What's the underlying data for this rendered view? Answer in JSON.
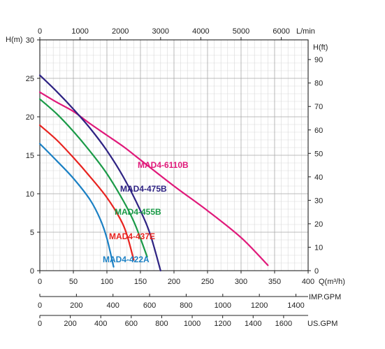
{
  "chart_data": {
    "type": "line",
    "axes": {
      "q_m3h": {
        "label": "Q(m³/h)",
        "min": 0,
        "max": 400,
        "ticks": [
          0,
          50,
          100,
          150,
          200,
          250,
          300,
          350,
          400
        ]
      },
      "l_min": {
        "label": "L/min",
        "min": 0,
        "max": 6666.7,
        "ticks": [
          0,
          1000,
          2000,
          3000,
          4000,
          5000,
          6000
        ]
      },
      "h_m": {
        "label": "H(m)",
        "min": 0,
        "max": 30,
        "ticks": [
          0,
          5,
          10,
          15,
          20,
          25,
          30
        ]
      },
      "h_ft": {
        "label": "H(ft)",
        "min": 0,
        "max": 98.4,
        "ticks": [
          0,
          10,
          20,
          30,
          40,
          50,
          60,
          70,
          80,
          90
        ]
      },
      "imp_gpm": {
        "label": "IMP.GPM",
        "min": 0,
        "max": 1466.7,
        "ticks": [
          0,
          200,
          400,
          600,
          800,
          1000,
          1200,
          1400
        ]
      },
      "us_gpm": {
        "label": "US.GPM",
        "min": 0,
        "max": 1761,
        "ticks": [
          0,
          200,
          400,
          600,
          800,
          1000,
          1200,
          1400,
          1600
        ]
      }
    },
    "grid": true,
    "series": [
      {
        "name": "MAD4-6110B",
        "color": "#e0197a",
        "points": [
          [
            0,
            23.2
          ],
          [
            25,
            21.9
          ],
          [
            50,
            20.7
          ],
          [
            75,
            19.1
          ],
          [
            100,
            17.6
          ],
          [
            125,
            16.1
          ],
          [
            150,
            14.4
          ],
          [
            200,
            11.0
          ],
          [
            250,
            7.8
          ],
          [
            300,
            4.3
          ],
          [
            340,
            0.7
          ]
        ]
      },
      {
        "name": "MAD4-475B",
        "color": "#2e2383",
        "points": [
          [
            0,
            25.4
          ],
          [
            25,
            23.3
          ],
          [
            50,
            21.0
          ],
          [
            75,
            18.5
          ],
          [
            100,
            15.6
          ],
          [
            125,
            12.1
          ],
          [
            150,
            7.8
          ],
          [
            165,
            4.6
          ],
          [
            180,
            0.0
          ]
        ]
      },
      {
        "name": "MAD4-455B",
        "color": "#1a9a47",
        "points": [
          [
            0,
            22.3
          ],
          [
            25,
            20.4
          ],
          [
            50,
            18.1
          ],
          [
            75,
            15.5
          ],
          [
            100,
            12.6
          ],
          [
            125,
            9.0
          ],
          [
            140,
            6.4
          ],
          [
            150,
            4.2
          ],
          [
            160,
            1.8
          ]
        ]
      },
      {
        "name": "MAD4-437E",
        "color": "#e8231f",
        "points": [
          [
            0,
            18.9
          ],
          [
            25,
            17.0
          ],
          [
            50,
            14.7
          ],
          [
            75,
            12.2
          ],
          [
            100,
            9.5
          ],
          [
            120,
            6.7
          ],
          [
            130,
            4.6
          ],
          [
            140,
            1.4
          ]
        ]
      },
      {
        "name": "MAD4-422A",
        "color": "#1b80c4",
        "points": [
          [
            0,
            16.5
          ],
          [
            25,
            14.3
          ],
          [
            50,
            12.0
          ],
          [
            75,
            9.2
          ],
          [
            90,
            6.7
          ],
          [
            100,
            4.2
          ],
          [
            110,
            0.5
          ]
        ]
      }
    ]
  }
}
